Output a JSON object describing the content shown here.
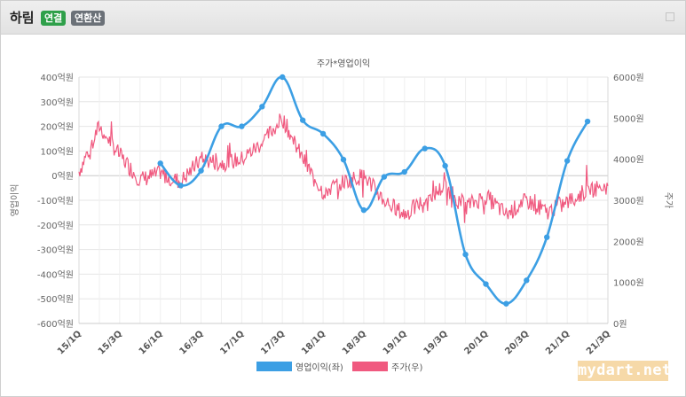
{
  "header": {
    "title": "하림",
    "badge_primary": "연결",
    "badge_secondary": "연환산",
    "expand_icon": "expand-icon"
  },
  "watermark": "mydart.net",
  "colors": {
    "profit": "#3c9fe4",
    "price": "#f0597f",
    "grid": "#e6e6e6",
    "axis_text": "#666666"
  },
  "chart_data": {
    "type": "line",
    "title": "주가*영업이익",
    "left_axis_label": "영업이익",
    "right_axis_label": "주가",
    "categories": [
      "15/1Q",
      "15/2Q",
      "15/3Q",
      "15/4Q",
      "16/1Q",
      "16/2Q",
      "16/3Q",
      "16/4Q",
      "17/1Q",
      "17/2Q",
      "17/3Q",
      "17/4Q",
      "18/1Q",
      "18/2Q",
      "18/3Q",
      "18/4Q",
      "19/1Q",
      "19/2Q",
      "19/3Q",
      "19/4Q",
      "20/1Q",
      "20/2Q",
      "20/3Q",
      "20/4Q",
      "21/1Q",
      "21/2Q",
      "21/3Q"
    ],
    "x_tick_labels": [
      "15/1Q",
      "15/3Q",
      "16/1Q",
      "16/3Q",
      "17/1Q",
      "17/3Q",
      "18/1Q",
      "18/3Q",
      "19/1Q",
      "19/3Q",
      "20/1Q",
      "20/3Q",
      "21/1Q",
      "21/3Q"
    ],
    "left_ylim": [
      -600,
      400
    ],
    "left_ticks": [
      "400억원",
      "300억원",
      "200억원",
      "100억원",
      "0억원",
      "-100억원",
      "-200억원",
      "-300억원",
      "-400억원",
      "-500억원",
      "-600억원"
    ],
    "right_ylim": [
      0,
      6000
    ],
    "right_ticks": [
      "6000원",
      "5000원",
      "4000원",
      "3000원",
      "2000원",
      "1000원",
      "0원"
    ],
    "series": [
      {
        "name": "영업이익(좌)",
        "axis": "left",
        "color": "#3c9fe4",
        "x": [
          "16/1Q",
          "16/2Q",
          "16/3Q",
          "16/4Q",
          "17/1Q",
          "17/2Q",
          "17/3Q",
          "17/4Q",
          "18/1Q",
          "18/2Q",
          "18/3Q",
          "18/4Q",
          "19/1Q",
          "19/2Q",
          "19/3Q",
          "19/4Q",
          "20/1Q",
          "20/2Q",
          "20/3Q",
          "20/4Q",
          "21/1Q",
          "21/2Q"
        ],
        "values": [
          50,
          -40,
          20,
          200,
          200,
          280,
          400,
          225,
          170,
          65,
          -140,
          -5,
          15,
          110,
          40,
          -320,
          -440,
          -520,
          -425,
          -250,
          60,
          220
        ]
      },
      {
        "name": "주가(우)",
        "axis": "right",
        "color": "#f0597f",
        "anchors_x": [
          "15/1Q",
          "15/2Q",
          "15/3Q",
          "15/4Q",
          "16/1Q",
          "16/2Q",
          "16/3Q",
          "16/4Q",
          "17/1Q",
          "17/2Q",
          "17/3Q",
          "17/4Q",
          "18/1Q",
          "18/2Q",
          "18/3Q",
          "18/4Q",
          "19/1Q",
          "19/2Q",
          "19/3Q",
          "19/4Q",
          "20/1Q",
          "20/2Q",
          "20/3Q",
          "20/4Q",
          "21/1Q",
          "21/2Q",
          "21/3Q"
        ],
        "values": [
          3700,
          4800,
          4100,
          3500,
          3650,
          3450,
          4000,
          3900,
          4000,
          4400,
          5000,
          4000,
          3200,
          3450,
          3600,
          3000,
          2650,
          3000,
          3350,
          2850,
          3100,
          2650,
          3000,
          2700,
          2950,
          3250,
          3350
        ]
      }
    ],
    "legend_position": "bottom",
    "grid": true
  }
}
